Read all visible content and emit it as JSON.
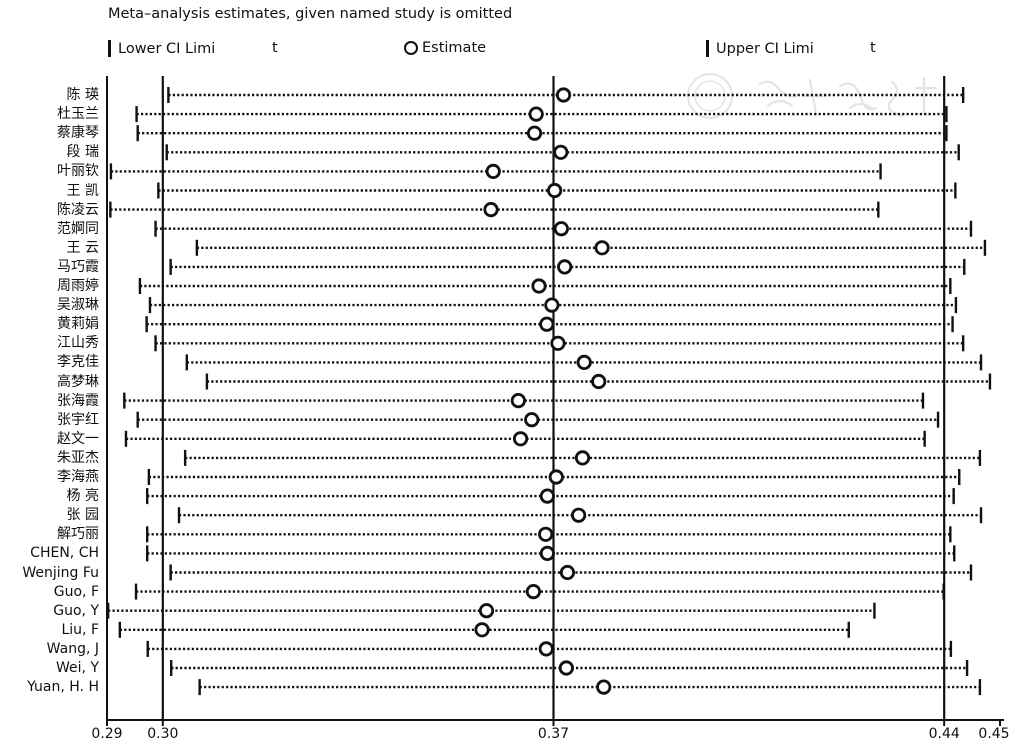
{
  "chart_data": {
    "type": "forest",
    "title": "Meta–analysis estimates, given named study is omitted",
    "legend": {
      "lower": "Lower CI Limi",
      "lower_t": "t",
      "estimate": "Estimate",
      "upper": "Upper CI Limi",
      "upper_t": "t",
      "placement": "top"
    },
    "x_ticks": [
      {
        "value": 0.29,
        "label": "0.29"
      },
      {
        "value": 0.3,
        "label": "0.30"
      },
      {
        "value": 0.37,
        "label": "0.37"
      },
      {
        "value": 0.44,
        "label": "0.44"
      },
      {
        "value": 0.45,
        "label": "0.45"
      }
    ],
    "reference_lines": [
      0.3,
      0.37,
      0.44
    ],
    "xlim": [
      0.29,
      0.45
    ],
    "studies": [
      {
        "name": "陈 瑛",
        "lower": 0.301,
        "estimate": 0.3718,
        "upper": 0.4434
      },
      {
        "name": "杜玉兰",
        "lower": 0.2953,
        "estimate": 0.3669,
        "upper": 0.4404
      },
      {
        "name": "蔡康琴",
        "lower": 0.2955,
        "estimate": 0.3666,
        "upper": 0.4404
      },
      {
        "name": "段 瑞",
        "lower": 0.3007,
        "estimate": 0.3713,
        "upper": 0.4426
      },
      {
        "name": "叶丽钦",
        "lower": 0.2907,
        "estimate": 0.3592,
        "upper": 0.4286
      },
      {
        "name": "王 凯",
        "lower": 0.2992,
        "estimate": 0.3702,
        "upper": 0.442
      },
      {
        "name": "陈凌云",
        "lower": 0.2906,
        "estimate": 0.3588,
        "upper": 0.4282
      },
      {
        "name": "范婀同",
        "lower": 0.2987,
        "estimate": 0.3714,
        "upper": 0.4448
      },
      {
        "name": "王 云",
        "lower": 0.3061,
        "estimate": 0.3787,
        "upper": 0.4473
      },
      {
        "name": "马巧霞",
        "lower": 0.3014,
        "estimate": 0.372,
        "upper": 0.4436
      },
      {
        "name": "周雨婷",
        "lower": 0.2959,
        "estimate": 0.3674,
        "upper": 0.4411
      },
      {
        "name": "吴淑琳",
        "lower": 0.2977,
        "estimate": 0.3697,
        "upper": 0.4421
      },
      {
        "name": "黄莉娟",
        "lower": 0.2971,
        "estimate": 0.3688,
        "upper": 0.4415
      },
      {
        "name": "江山秀",
        "lower": 0.2987,
        "estimate": 0.3708,
        "upper": 0.4434
      },
      {
        "name": "李克佳",
        "lower": 0.3043,
        "estimate": 0.3755,
        "upper": 0.4466
      },
      {
        "name": "高梦琳",
        "lower": 0.3079,
        "estimate": 0.3781,
        "upper": 0.4482
      },
      {
        "name": "张海霞",
        "lower": 0.2931,
        "estimate": 0.3637,
        "upper": 0.4362
      },
      {
        "name": "张宇红",
        "lower": 0.2955,
        "estimate": 0.3661,
        "upper": 0.4389
      },
      {
        "name": "赵文一",
        "lower": 0.2934,
        "estimate": 0.3641,
        "upper": 0.4365
      },
      {
        "name": "朱亚杰",
        "lower": 0.304,
        "estimate": 0.3752,
        "upper": 0.4464
      },
      {
        "name": "李海燕",
        "lower": 0.2975,
        "estimate": 0.3705,
        "upper": 0.4427
      },
      {
        "name": "杨 亮",
        "lower": 0.2972,
        "estimate": 0.3689,
        "upper": 0.4417
      },
      {
        "name": "张 园",
        "lower": 0.3029,
        "estimate": 0.3745,
        "upper": 0.4466
      },
      {
        "name": "解巧丽",
        "lower": 0.2972,
        "estimate": 0.3686,
        "upper": 0.4411
      },
      {
        "name": "CHEN, CH",
        "lower": 0.2972,
        "estimate": 0.3689,
        "upper": 0.4418
      },
      {
        "name": "Wenjing Fu",
        "lower": 0.3014,
        "estimate": 0.3725,
        "upper": 0.4448
      },
      {
        "name": "Guo, F",
        "lower": 0.2952,
        "estimate": 0.3664,
        "upper": 0.4399
      },
      {
        "name": "Guo, Y",
        "lower": 0.2902,
        "estimate": 0.358,
        "upper": 0.4275
      },
      {
        "name": "Liu, F",
        "lower": 0.2923,
        "estimate": 0.3572,
        "upper": 0.4229
      },
      {
        "name": "Wang, J",
        "lower": 0.2973,
        "estimate": 0.3687,
        "upper": 0.4412
      },
      {
        "name": "Wei, Y",
        "lower": 0.3015,
        "estimate": 0.3723,
        "upper": 0.4441
      },
      {
        "name": "Yuan, H. H",
        "lower": 0.3066,
        "estimate": 0.379,
        "upper": 0.4464
      }
    ]
  }
}
